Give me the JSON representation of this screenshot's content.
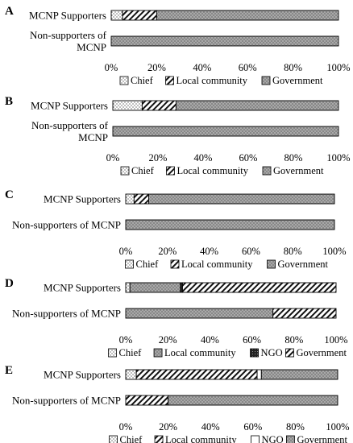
{
  "chart_data": [
    {
      "panel": "A",
      "type": "bar",
      "orientation": "horizontal",
      "stacked": true,
      "xlim": [
        0,
        100
      ],
      "ticks": [
        "0%",
        "20%",
        "40%",
        "60%",
        "80%",
        "100%"
      ],
      "categories": [
        "MCNP Supporters",
        "Non-supporters of MCNP"
      ],
      "categories_lines": [
        [
          "MCNP Supporters"
        ],
        [
          "Non-supporters of",
          "MCNP"
        ]
      ],
      "legend": [
        "Chief",
        "Local community",
        "Government"
      ],
      "legend_placement": "bottom",
      "series": [
        {
          "name": "Chief",
          "pattern": "dots",
          "values": [
            5,
            0
          ]
        },
        {
          "name": "Local community",
          "pattern": "hatch",
          "values": [
            15,
            0
          ]
        },
        {
          "name": "Government",
          "pattern": "gray",
          "values": [
            80,
            100
          ]
        }
      ]
    },
    {
      "panel": "B",
      "type": "bar",
      "orientation": "horizontal",
      "stacked": true,
      "xlim": [
        0,
        100
      ],
      "ticks": [
        "0%",
        "20%",
        "40%",
        "60%",
        "80%",
        "100%"
      ],
      "categories": [
        "MCNP Supporters",
        "Non-supporters of MCNP"
      ],
      "categories_lines": [
        [
          "MCNP Supporters"
        ],
        [
          "Non-supporters of",
          "MCNP"
        ]
      ],
      "legend": [
        "Chief",
        "Local community",
        "Government"
      ],
      "legend_placement": "bottom",
      "series": [
        {
          "name": "Chief",
          "pattern": "dots",
          "values": [
            13,
            0
          ]
        },
        {
          "name": "Local community",
          "pattern": "hatch",
          "values": [
            15,
            0
          ]
        },
        {
          "name": "Government",
          "pattern": "gray",
          "values": [
            72,
            100
          ]
        }
      ]
    },
    {
      "panel": "C",
      "type": "bar",
      "orientation": "horizontal",
      "stacked": true,
      "xlim": [
        0,
        100
      ],
      "ticks": [
        "0%",
        "20%",
        "40%",
        "60%",
        "80%",
        "100%"
      ],
      "categories": [
        "MCNP Supporters",
        "Non-supporters of MCNP"
      ],
      "categories_lines": [
        [
          "MCNP Supporters"
        ],
        [
          "Non-supporters of MCNP"
        ]
      ],
      "legend": [
        "Chief",
        "Local community",
        "Government"
      ],
      "legend_placement": "bottom",
      "series": [
        {
          "name": "Chief",
          "pattern": "dots",
          "values": [
            4,
            0
          ]
        },
        {
          "name": "Local community",
          "pattern": "hatch",
          "values": [
            7,
            0
          ]
        },
        {
          "name": "Government",
          "pattern": "gray",
          "values": [
            89,
            100
          ]
        }
      ]
    },
    {
      "panel": "D",
      "type": "bar",
      "orientation": "horizontal",
      "stacked": true,
      "xlim": [
        0,
        100
      ],
      "ticks": [
        "0%",
        "20%",
        "40%",
        "60%",
        "80%",
        "100%"
      ],
      "categories": [
        "MCNP Supporters",
        "Non-supporters of MCNP"
      ],
      "categories_lines": [
        [
          "MCNP Supporters"
        ],
        [
          "Non-supporters of MCNP"
        ]
      ],
      "legend": [
        "Chief",
        "Local community",
        "NGO",
        "Government"
      ],
      "legend_placement": "bottom",
      "series": [
        {
          "name": "Chief",
          "pattern": "dots",
          "values": [
            2,
            0
          ]
        },
        {
          "name": "Local community",
          "pattern": "gray",
          "values": [
            24,
            70
          ]
        },
        {
          "name": "NGO",
          "pattern": "dark",
          "values": [
            1,
            0
          ]
        },
        {
          "name": "Government",
          "pattern": "hatch",
          "values": [
            73,
            30
          ]
        }
      ]
    },
    {
      "panel": "E",
      "type": "bar",
      "orientation": "horizontal",
      "stacked": true,
      "xlim": [
        0,
        100
      ],
      "ticks": [
        "0%",
        "20%",
        "40%",
        "60%",
        "80%",
        "100%"
      ],
      "categories": [
        "MCNP Supporters",
        "Non-supporters of MCNP"
      ],
      "categories_lines": [
        [
          "MCNP Supporters"
        ],
        [
          "Non-supporters of MCNP"
        ]
      ],
      "legend": [
        "Chief",
        "Local community",
        "NGO",
        "Government"
      ],
      "legend_placement": "bottom",
      "series": [
        {
          "name": "Chief",
          "pattern": "dots",
          "values": [
            5,
            0
          ]
        },
        {
          "name": "Local community",
          "pattern": "hatch",
          "values": [
            57,
            20
          ]
        },
        {
          "name": "NGO",
          "pattern": "white",
          "values": [
            2,
            0
          ]
        },
        {
          "name": "Government",
          "pattern": "gray",
          "values": [
            36,
            80
          ]
        }
      ]
    }
  ]
}
